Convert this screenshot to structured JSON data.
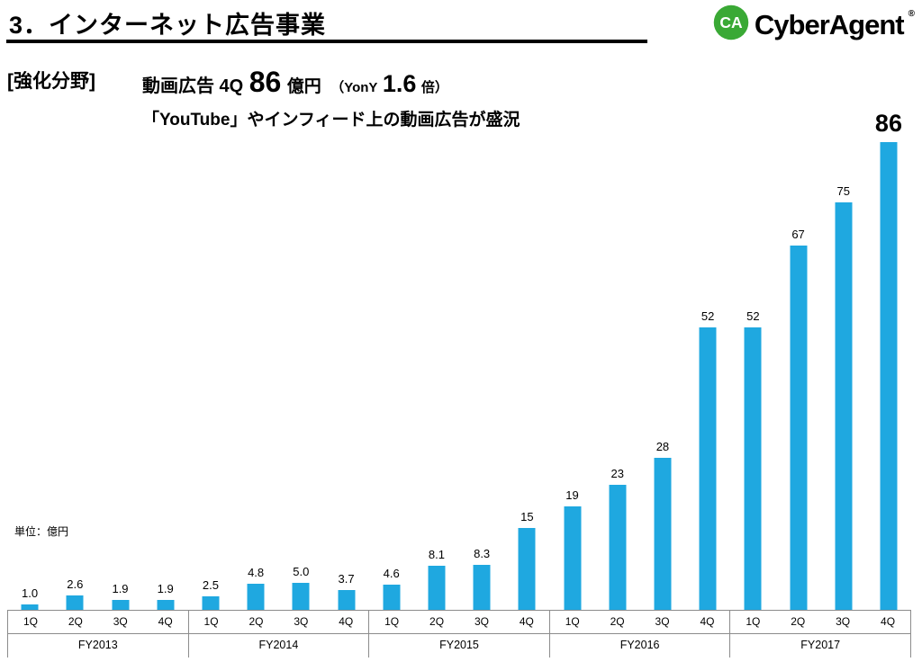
{
  "header": {
    "title": "3．インターネット広告事業",
    "logo": {
      "mark": "CA",
      "name": "CyberAgent",
      "reg": "®"
    }
  },
  "highlight": {
    "bracket": "[強化分野]",
    "line1": {
      "prefix": "動画広告 4Q",
      "big_value": "86",
      "unit": "億円",
      "yony_open": "（YonY",
      "yony_value": "1.6",
      "yony_close": "倍）"
    },
    "line2": "「YouTube」やインフィード上の動画広告が盛況"
  },
  "chart_data": {
    "type": "bar",
    "unit_label": "単位：億円",
    "bar_color": "#1FA8E0",
    "ylim": [
      0,
      86
    ],
    "legend": "none",
    "grid": "off",
    "quarter_labels": [
      "1Q",
      "2Q",
      "3Q",
      "4Q"
    ],
    "groups": [
      {
        "label": "FY2013",
        "values": [
          1.0,
          2.6,
          1.9,
          1.9
        ],
        "value_labels": [
          "1.0",
          "2.6",
          "1.9",
          "1.9"
        ]
      },
      {
        "label": "FY2014",
        "values": [
          2.5,
          4.8,
          5.0,
          3.7
        ],
        "value_labels": [
          "2.5",
          "4.8",
          "5.0",
          "3.7"
        ]
      },
      {
        "label": "FY2015",
        "values": [
          4.6,
          8.1,
          8.3,
          15
        ],
        "value_labels": [
          "4.6",
          "8.1",
          "8.3",
          "15"
        ]
      },
      {
        "label": "FY2016",
        "values": [
          19,
          23,
          28,
          52
        ],
        "value_labels": [
          "19",
          "23",
          "28",
          "52"
        ]
      },
      {
        "label": "FY2017",
        "values": [
          52,
          67,
          75,
          86
        ],
        "value_labels": [
          "52",
          "67",
          "75",
          "86"
        ]
      }
    ]
  }
}
